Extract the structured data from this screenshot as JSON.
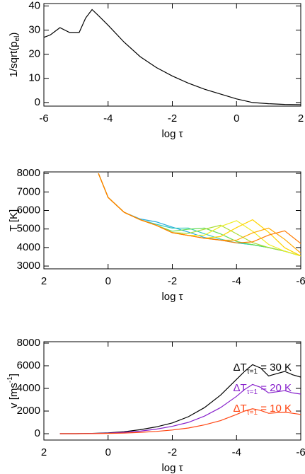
{
  "chart_data": [
    {
      "type": "line",
      "xlabel": "log τ",
      "ylabel": [
        "1/sqrt(p",
        "el",
        ")"
      ],
      "x": [
        -6,
        -5.8,
        -5.5,
        -5.2,
        -4.9,
        -4.7,
        -4.5,
        -4.3,
        -4.0,
        -3.5,
        -3,
        -2.5,
        -2,
        -1.5,
        -1,
        -0.5,
        0,
        0.5,
        1,
        1.5,
        2
      ],
      "series": [
        {
          "color": "#000000",
          "values": [
            27,
            28,
            31,
            29,
            29,
            35,
            38.5,
            36,
            32,
            25,
            19,
            14.5,
            11,
            8,
            5.5,
            3.5,
            1.5,
            0,
            -0.5,
            -0.8,
            -0.9
          ]
        }
      ],
      "xlim": [
        -6,
        2
      ],
      "xticks": [
        -6,
        -4,
        -2,
        0,
        2
      ],
      "ylim": [
        -1.5,
        41
      ],
      "yticks": [
        0,
        10,
        20,
        30,
        40
      ]
    },
    {
      "type": "line",
      "xlabel": "log τ",
      "ylabel": [
        "T [K]"
      ],
      "x": [
        0.3,
        0,
        -0.5,
        -1,
        -1.5,
        -2,
        -2.5,
        -3,
        -3.5,
        -4,
        -4.5,
        -5,
        -5.5,
        -6
      ],
      "series": [
        {
          "color": "#22aadd",
          "values": [
            8000,
            6700,
            5900,
            5542,
            5383,
            5100,
            4833,
            4542,
            4400,
            4250,
            4150,
            4000,
            3800,
            3550
          ]
        },
        {
          "color": "#33ccbb",
          "values": [
            8000,
            6700,
            5900,
            5500,
            5256,
            5044,
            5050,
            4744,
            4456,
            4250,
            4150,
            4000,
            3800,
            3550
          ]
        },
        {
          "color": "#66dd55",
          "values": [
            8000,
            6700,
            5900,
            5500,
            5200,
            4877,
            4986,
            5050,
            4736,
            4327,
            4150,
            4000,
            3800,
            3550
          ]
        },
        {
          "color": "#aadd33",
          "values": [
            8000,
            6700,
            5900,
            5500,
            5200,
            4800,
            4762,
            4988,
            5200,
            4738,
            4262,
            4000,
            3800,
            3550
          ]
        },
        {
          "color": "#eeee22",
          "values": [
            8000,
            6700,
            5900,
            5500,
            5200,
            4800,
            4650,
            4668,
            5132,
            5450,
            4882,
            4168,
            3800,
            3550
          ]
        },
        {
          "color": "#ffd400",
          "values": [
            8000,
            6700,
            5900,
            5500,
            5200,
            4800,
            4650,
            4500,
            4589,
            5074,
            5500,
            4824,
            3989,
            3550
          ]
        },
        {
          "color": "#ffaa00",
          "values": [
            8000,
            6700,
            5900,
            5500,
            5200,
            4800,
            4650,
            4500,
            4400,
            4397,
            4791,
            5050,
            4441,
            3697
          ]
        },
        {
          "color": "#ff7a00",
          "values": [
            8000,
            6700,
            5900,
            5500,
            5200,
            4800,
            4650,
            4500,
            4400,
            4250,
            4304,
            4671,
            4900,
            4221
          ]
        }
      ],
      "xlim": [
        2,
        -6
      ],
      "xticks": [
        2,
        0,
        -2,
        -4,
        -6
      ],
      "ylim": [
        2850,
        8080
      ],
      "yticks": [
        3000,
        4000,
        5000,
        6000,
        7000,
        8000
      ]
    },
    {
      "type": "line",
      "xlabel": "log τ",
      "ylabel": [
        "v [ms",
        "-1",
        "]"
      ],
      "x": [
        1.5,
        1,
        0.5,
        0,
        -0.5,
        -1,
        -1.5,
        -2,
        -2.5,
        -3,
        -3.5,
        -4,
        -4.25,
        -4.5,
        -4.75,
        -5,
        -5.25,
        -5.5,
        -5.75,
        -6
      ],
      "series": [
        {
          "color": "#000000",
          "values": [
            0,
            0,
            30,
            80,
            180,
            350,
            600,
            950,
            1500,
            2300,
            3400,
            4800,
            5500,
            6100,
            5800,
            5100,
            5300,
            5500,
            5200,
            5000
          ]
        },
        {
          "color": "#8822cc",
          "values": [
            0,
            0,
            20,
            50,
            120,
            230,
            400,
            650,
            1000,
            1550,
            2300,
            3300,
            3900,
            4350,
            4100,
            3600,
            3700,
            3800,
            3600,
            3500
          ]
        },
        {
          "color": "#ff4411",
          "values": [
            0,
            0,
            10,
            25,
            60,
            120,
            200,
            330,
            500,
            780,
            1150,
            1700,
            2000,
            2200,
            2050,
            1800,
            1850,
            1900,
            1800,
            1700
          ]
        }
      ],
      "annotations": [
        {
          "prefix": "ΔT",
          "subscript": "τ=1",
          "suffix": " = 30 K",
          "color": "#000000"
        },
        {
          "prefix": "ΔT",
          "subscript": "τ=1",
          "suffix": " = 20 K",
          "color": "#8822cc"
        },
        {
          "prefix": "ΔT",
          "subscript": "τ=1",
          "suffix": " = 10 K",
          "color": "#ff4411"
        }
      ],
      "xlim": [
        2,
        -6
      ],
      "xticks": [
        2,
        0,
        -2,
        -4,
        -6
      ],
      "ylim": [
        -560,
        8125
      ],
      "yticks": [
        0,
        2000,
        4000,
        6000,
        8000
      ]
    }
  ]
}
